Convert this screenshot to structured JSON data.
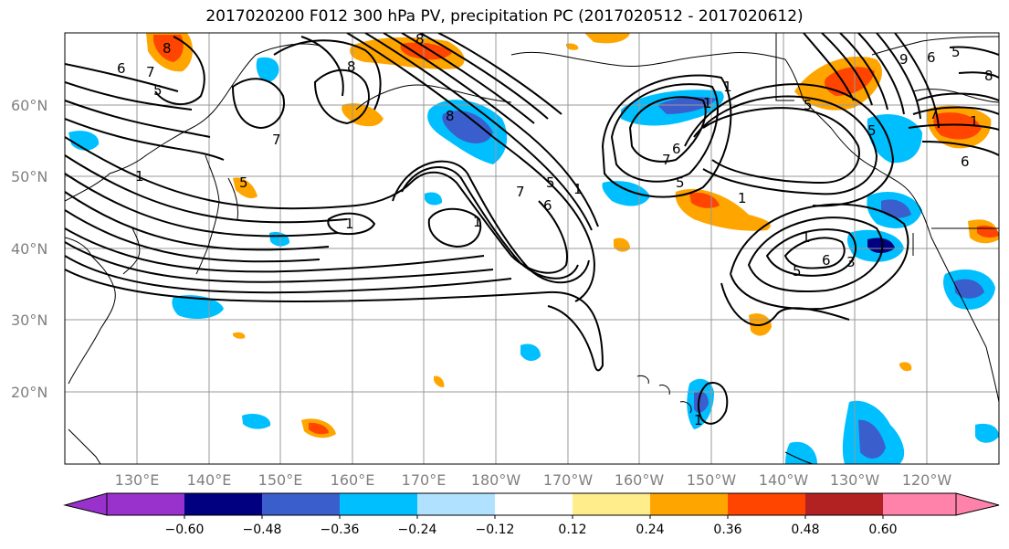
{
  "title": "2017020200 F012 300 hPa PV, precipitation PC (2017020512 - 2017020612)",
  "map": {
    "lat_labels": [
      "60°N",
      "50°N",
      "40°N",
      "30°N",
      "20°N"
    ],
    "lon_labels": [
      "130°E",
      "140°E",
      "150°E",
      "160°E",
      "170°E",
      "180°W",
      "170°W",
      "160°W",
      "150°W",
      "140°W",
      "130°W",
      "120°W"
    ],
    "contour_labels": [
      "8",
      "6",
      "7",
      "5",
      "8",
      "8",
      "7",
      "1",
      "5",
      "1",
      "1",
      "1",
      "8",
      "5",
      "6",
      "7",
      "1",
      "1",
      "7",
      "5",
      "6",
      "1",
      "5",
      "3",
      "1",
      "1",
      "5",
      "9",
      "6",
      "5",
      "7",
      "6",
      "8",
      "6",
      "5",
      "1"
    ]
  },
  "colorbar": {
    "ticks": [
      "−0.60",
      "−0.48",
      "−0.36",
      "−0.24",
      "−0.12",
      "0.12",
      "0.24",
      "0.36",
      "0.48",
      "0.60"
    ],
    "colors": [
      "#9932cc",
      "#000080",
      "#3a5fcd",
      "#00bfff",
      "#b0e2ff",
      "#ffffff",
      "#ffec8b",
      "#ffa500",
      "#ff4500",
      "#b22222",
      "#ff82ab"
    ]
  },
  "legend_colors": {
    "neg_strong": "#3a5fcd",
    "neg_mid": "#00bfff",
    "neg_deep": "#000080",
    "pos_mid": "#ffa500",
    "pos_strong": "#ff4500",
    "pos_weak": "#ffec8b"
  }
}
